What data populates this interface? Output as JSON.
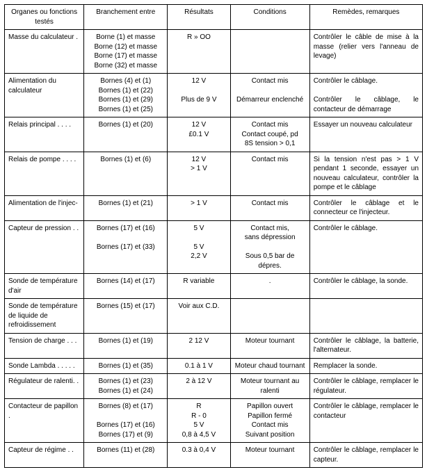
{
  "headers": [
    "Organes ou fonctions testés",
    "Branchement entre",
    "Résultats",
    "Conditions",
    "Remèdes, remarques"
  ],
  "colAlign": [
    "left",
    "center",
    "center",
    "center",
    "just"
  ],
  "rows": [
    {
      "cells": [
        "Masse du calculateur   .",
        "Borne (1) et masse\nBorne (12) et masse\nBorne (17) et masse\nBorne (32) et masse",
        "R » OO",
        "",
        "Contrôler le câble de mise à la masse (relier vers l'anneau de levage)"
      ]
    },
    {
      "cells": [
        "Alimentation du calculateur",
        "Bornes (4) et (1)\nBornes (1) et (22)\nBornes (1) et (29)\nBornes (1) et (25)",
        "12 V\n\nPlus de 9 V",
        "Contact mis\n\nDémarreur enclenché",
        "Contrôler le câblage.\n\nContrôler le câblage, le contacteur de démarrage"
      ]
    },
    {
      "cells": [
        "Relais principal  .  .  .  .",
        "Bornes (1) et (20)",
        "12 V\n£0.1 V",
        "Contact mis\nContact coupé, pd\n8S tension > 0,1",
        "Essayer un nouveau calculateur"
      ]
    },
    {
      "cells": [
        "Relais de pompe  .  .  .  .",
        "Bornes (1) et (6)",
        "12 V\n> 1 V",
        "Contact mis",
        "Si la tension n'est pas > 1 V pendant 1 seconde, essayer un nouveau calculateur, contrôler la pompe et le câblage"
      ]
    },
    {
      "cells": [
        "Alimentation  de  l'injec-",
        "Bornes (1) et (21)",
        "> 1 V",
        "Contact mis",
        "Contrôler le câblage et le connecteur ce l'injecteur."
      ]
    },
    {
      "cells": [
        "Capteur de pression  .  .",
        "Bornes (17) et (16)\n\nBornes (17) et (33)",
        "5 V\n\n5 V\n2,2 V",
        "Contact mis,\nsans dépression\n\nSous 0,5 bar de dépres.",
        "Contrôler le câblage."
      ]
    },
    {
      "cells": [
        "Sonde de température d'air",
        "Bornes (14) et (17)",
        "R variable",
        ".",
        "Contrôler le câblage, la sonde."
      ]
    },
    {
      "cells": [
        "Sonde de température de liquide de refroidissement",
        "Bornes (15) et (17)",
        "Voir aux C.D.",
        "",
        ""
      ]
    },
    {
      "cells": [
        "Tension de charge  .  .  .",
        "Bornes (1) et (19)",
        "2 12 V",
        "Moteur tournant",
        "Contrôler le câblage, la batterie, l'alternateur."
      ]
    },
    {
      "cells": [
        "Sonde Lambda  .  .  .  .  .",
        "Bornes (1) et (35)",
        "0.1 à 1 V",
        "Moteur chaud tournant",
        "Remplacer la sonde."
      ]
    },
    {
      "cells": [
        "Régulateur de ralenti.  .",
        "Bornes (1) et (23)\nBornes (1) et (24)",
        "2 à 12 V",
        "Moteur tournant au ralenti",
        "Contrôler le câblage, remplacer le régulateur."
      ]
    },
    {
      "cells": [
        "Contacteur de papillon  .",
        "Bornes (8) et (17)\n\nBornes (17) et (16)\nBornes (17) et (9)",
        "R\nR - 0\n5 V\n0,8 à 4,5 V",
        "Papillon ouvert\nPapillon fermé\nContact mis\nSuivant position",
        "Contrôler le câblage, remplacer le contacteur"
      ]
    },
    {
      "cells": [
        "Capteur de régime   .  .",
        "Bornes (11) et (28)",
        "0.3 à 0,4 V",
        "Moteur tournant",
        "Contrôler le câblage, remplacer le capteur."
      ]
    }
  ]
}
